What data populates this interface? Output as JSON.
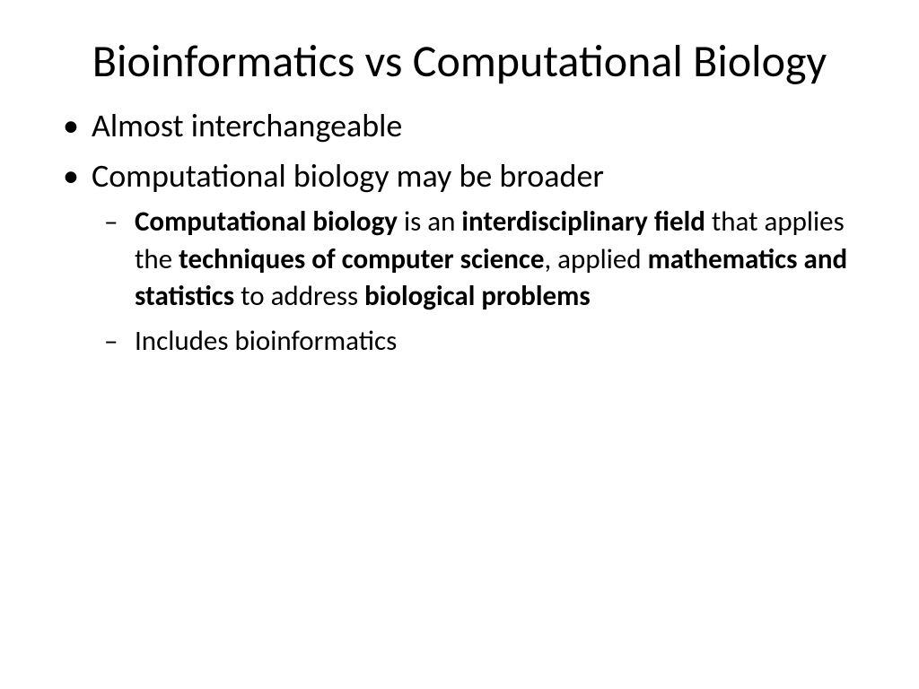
{
  "slide": {
    "title": "Bioinformatics vs Computational Biology",
    "title_fontsize": 50,
    "background_color": "#ffffff",
    "text_color": "#000000",
    "bullets_level1": [
      {
        "text": "Almost interchangeable"
      },
      {
        "text": "Computational biology may be broader"
      }
    ],
    "bullets_level2": [
      {
        "runs": [
          {
            "t": "Computational biology",
            "bold": true
          },
          {
            "t": " is an ",
            "bold": false
          },
          {
            "t": "interdisciplinary field",
            "bold": true
          },
          {
            "t": " that applies the ",
            "bold": false
          },
          {
            "t": "techniques of computer science",
            "bold": true
          },
          {
            "t": ", applied ",
            "bold": false
          },
          {
            "t": "mathematics and statistics",
            "bold": true
          },
          {
            "t": " to address ",
            "bold": false
          },
          {
            "t": "biological problems",
            "bold": true
          }
        ]
      },
      {
        "runs": [
          {
            "t": "Includes bioinformatics",
            "bold": false
          }
        ]
      }
    ],
    "level1_fontsize": 36,
    "level2_fontsize": 31,
    "level1_marker": "•",
    "level2_marker": "–"
  }
}
